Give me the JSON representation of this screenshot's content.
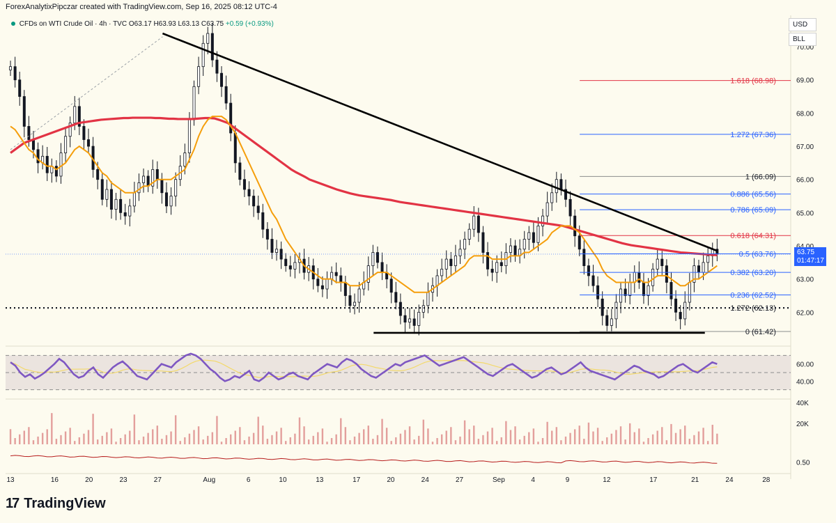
{
  "header": {
    "credit": "ForexAnalytixPipczar created with TradingView.com, Sep 16, 2025 08:12 UTC-4"
  },
  "symbol": {
    "name": "CFDs on WTI Crude Oil · 4h · TVC",
    "open": "O63.17",
    "high": "H63.93",
    "low": "L63.13",
    "close": "C63.75",
    "change": "+0.59 (+0.93%)"
  },
  "currency_buttons": [
    "USD",
    "BLL"
  ],
  "price_tag": {
    "price": "63.75",
    "countdown": "01:47:17"
  },
  "brand": {
    "name": "TradingView"
  },
  "colors": {
    "background": "#fdfbef",
    "ema_fast": "#f59e0b",
    "ema_slow": "#e23344",
    "rsi": "#7e57c2",
    "rsi_ma": "#f3d96b",
    "fib_blue": "#2962ff",
    "fib_red": "#e23344",
    "volume": "#d98080"
  },
  "chart_data": {
    "type": "candlestick",
    "price_axis": {
      "min": 61.0,
      "max": 70.4,
      "labels": [
        "70.00",
        "69.00",
        "68.00",
        "67.00",
        "66.00",
        "65.00",
        "64.00",
        "63.00",
        "62.00"
      ],
      "values": [
        70,
        69,
        68,
        67,
        66,
        65,
        64,
        63,
        62
      ]
    },
    "x_axis": {
      "labels": [
        "13",
        "16",
        "20",
        "23",
        "27",
        "Aug",
        "6",
        "10",
        "13",
        "17",
        "20",
        "24",
        "27",
        "Sep",
        "4",
        "9",
        "12",
        "17",
        "21",
        "24",
        "28"
      ],
      "bar_index": [
        0,
        18,
        32,
        46,
        60,
        81,
        97,
        111,
        126,
        141,
        155,
        169,
        183,
        199,
        213,
        227,
        243,
        262,
        279,
        293,
        308
      ]
    },
    "close_series": [
      69.4,
      69.0,
      68.5,
      67.6,
      67.2,
      66.9,
      66.5,
      66.7,
      66.2,
      66.4,
      66.1,
      66.8,
      67.3,
      67.7,
      68.2,
      67.6,
      67.2,
      67.0,
      66.3,
      66.0,
      65.4,
      65.7,
      65.1,
      65.4,
      65.0,
      64.9,
      65.2,
      65.6,
      65.9,
      66.1,
      65.8,
      66.3,
      66.0,
      65.6,
      65.2,
      65.5,
      66.0,
      66.4,
      66.8,
      67.8,
      68.8,
      69.4,
      70.1,
      70.4,
      69.6,
      69.2,
      68.8,
      68.3,
      67.4,
      66.5,
      66.0,
      65.7,
      65.5,
      65.2,
      65.0,
      64.5,
      64.2,
      63.8,
      63.9,
      63.6,
      63.4,
      63.3,
      63.5,
      63.6,
      63.2,
      63.4,
      63.0,
      62.8,
      62.7,
      63.0,
      63.2,
      63.1,
      62.9,
      62.5,
      62.2,
      62.3,
      62.7,
      62.9,
      63.4,
      63.8,
      63.5,
      63.2,
      63.0,
      62.6,
      62.3,
      61.9,
      61.7,
      61.8,
      61.6,
      62.0,
      62.2,
      62.6,
      62.8,
      63.1,
      63.3,
      63.6,
      63.4,
      63.7,
      63.9,
      64.2,
      64.5,
      64.9,
      64.4,
      63.8,
      63.3,
      63.2,
      63.5,
      63.4,
      63.8,
      64.0,
      63.7,
      63.9,
      64.2,
      64.4,
      64.1,
      64.6,
      64.9,
      65.3,
      65.6,
      66.0,
      65.7,
      65.4,
      64.9,
      64.3,
      63.9,
      63.4,
      63.1,
      62.8,
      62.4,
      61.9,
      61.6,
      61.8,
      62.3,
      62.7,
      62.5,
      62.9,
      63.2,
      62.9,
      62.5,
      62.8,
      63.3,
      63.6,
      63.4,
      62.9,
      62.4,
      62.0,
      61.8,
      62.3,
      62.9,
      63.4,
      63.2,
      63.5,
      63.7,
      63.9,
      63.75
    ],
    "ema_fast": [
      67.6,
      67.5,
      67.3,
      67.1,
      66.9,
      66.8,
      66.6,
      66.5,
      66.4,
      66.4,
      66.3,
      66.4,
      66.5,
      66.7,
      66.9,
      67.0,
      66.9,
      66.8,
      66.6,
      66.4,
      66.2,
      66.1,
      65.9,
      65.8,
      65.7,
      65.6,
      65.6,
      65.6,
      65.7,
      65.8,
      65.8,
      65.9,
      66.0,
      66.0,
      66.0,
      66.0,
      66.1,
      66.2,
      66.3,
      66.6,
      66.9,
      67.3,
      67.6,
      67.8,
      67.9,
      67.9,
      67.9,
      67.8,
      67.6,
      67.4,
      67.1,
      66.8,
      66.5,
      66.2,
      65.9,
      65.6,
      65.3,
      65.0,
      64.8,
      64.5,
      64.2,
      64.0,
      63.8,
      63.6,
      63.4,
      63.3,
      63.2,
      63.1,
      63.0,
      63.0,
      63.0,
      62.9,
      62.9,
      62.9,
      62.8,
      62.8,
      62.8,
      62.9,
      63.0,
      63.1,
      63.2,
      63.2,
      63.2,
      63.1,
      63.0,
      62.9,
      62.8,
      62.7,
      62.6,
      62.6,
      62.6,
      62.6,
      62.7,
      62.8,
      62.9,
      63.0,
      63.1,
      63.2,
      63.3,
      63.4,
      63.6,
      63.7,
      63.7,
      63.7,
      63.7,
      63.6,
      63.6,
      63.6,
      63.6,
      63.7,
      63.7,
      63.7,
      63.8,
      63.8,
      63.9,
      64.0,
      64.1,
      64.2,
      64.4,
      64.5,
      64.6,
      64.6,
      64.6,
      64.5,
      64.4,
      64.2,
      64.0,
      63.8,
      63.6,
      63.3,
      63.1,
      63.0,
      62.9,
      62.9,
      62.9,
      62.9,
      62.9,
      63.0,
      62.9,
      62.9,
      63.0,
      63.1,
      63.1,
      63.1,
      63.0,
      62.9,
      62.8,
      62.8,
      62.9,
      63.0,
      63.0,
      63.1,
      63.2,
      63.3,
      63.4
    ],
    "ema_slow": [
      66.8,
      66.9,
      67.0,
      67.1,
      67.15,
      67.2,
      67.25,
      67.3,
      67.35,
      67.4,
      67.45,
      67.5,
      67.55,
      67.6,
      67.65,
      67.7,
      67.72,
      67.74,
      67.76,
      67.78,
      67.8,
      67.81,
      67.82,
      67.83,
      67.84,
      67.85,
      67.85,
      67.86,
      67.86,
      67.86,
      67.86,
      67.86,
      67.85,
      67.85,
      67.84,
      67.83,
      67.83,
      67.82,
      67.82,
      67.82,
      67.82,
      67.83,
      67.84,
      67.85,
      67.85,
      67.84,
      67.8,
      67.75,
      67.7,
      67.6,
      67.5,
      67.4,
      67.3,
      67.2,
      67.1,
      67.0,
      66.9,
      66.8,
      66.7,
      66.6,
      66.5,
      66.4,
      66.3,
      66.22,
      66.15,
      66.08,
      66.0,
      65.95,
      65.9,
      65.85,
      65.8,
      65.75,
      65.7,
      65.66,
      65.62,
      65.58,
      65.55,
      65.52,
      65.5,
      65.48,
      65.46,
      65.44,
      65.42,
      65.4,
      65.38,
      65.35,
      65.32,
      65.3,
      65.28,
      65.26,
      65.24,
      65.22,
      65.2,
      65.18,
      65.16,
      65.14,
      65.12,
      65.1,
      65.08,
      65.06,
      65.04,
      65.02,
      65.0,
      64.98,
      64.96,
      64.94,
      64.92,
      64.9,
      64.88,
      64.86,
      64.84,
      64.82,
      64.8,
      64.78,
      64.76,
      64.74,
      64.72,
      64.7,
      64.68,
      64.66,
      64.64,
      64.62,
      64.6,
      64.56,
      64.52,
      64.48,
      64.44,
      64.4,
      64.36,
      64.32,
      64.28,
      64.24,
      64.2,
      64.16,
      64.12,
      64.08,
      64.05,
      64.02,
      64.0,
      63.98,
      63.96,
      63.94,
      63.92,
      63.9,
      63.88,
      63.86,
      63.84,
      63.82,
      63.8,
      63.79,
      63.78,
      63.77,
      63.76,
      63.75,
      63.74,
      63.73,
      63.72
    ],
    "fibonacci": [
      {
        "label": "1.618 (68.98)",
        "price": 68.98,
        "color": "red"
      },
      {
        "label": "1.272 (67.36)",
        "price": 67.36,
        "color": "blue"
      },
      {
        "label": "1 (66.09)",
        "price": 66.09,
        "color": "gray"
      },
      {
        "label": "0.886 (65.56)",
        "price": 65.56,
        "color": "blue"
      },
      {
        "label": "0.786 (65.09)",
        "price": 65.09,
        "color": "blue"
      },
      {
        "label": "0.618 (64.31)",
        "price": 64.31,
        "color": "red"
      },
      {
        "label": "0.5 (63.76)",
        "price": 63.76,
        "color": "blue"
      },
      {
        "label": "0.382 (63.20)",
        "price": 63.2,
        "color": "blue"
      },
      {
        "label": "0.236 (62.52)",
        "price": 62.52,
        "color": "blue"
      },
      {
        "label": "0 (61.42)",
        "price": 61.42,
        "color": "gray"
      }
    ],
    "horizontal_level": {
      "label": "1.272 (62.13)",
      "price": 62.13
    },
    "trendlines": [
      {
        "name": "descending resistance",
        "from": [
          62,
          70.4
        ],
        "to": [
          288,
          63.85
        ]
      },
      {
        "name": "support",
        "from": [
          148,
          61.38
        ],
        "to": [
          283,
          61.38
        ]
      }
    ],
    "rsi_pane": {
      "labels": [
        "60.00",
        "40.00"
      ],
      "values": [
        60,
        40
      ],
      "band": [
        30,
        70
      ],
      "min": 20,
      "max": 80
    },
    "rsi_series": [
      62,
      58,
      50,
      45,
      48,
      43,
      46,
      50,
      55,
      60,
      66,
      62,
      55,
      48,
      44,
      46,
      52,
      56,
      48,
      44,
      50,
      56,
      60,
      63,
      58,
      52,
      46,
      44,
      42,
      48,
      54,
      60,
      58,
      56,
      62,
      66,
      70,
      72,
      70,
      66,
      60,
      54,
      50,
      44,
      40,
      42,
      46,
      44,
      48,
      52,
      42,
      40,
      44,
      50,
      46,
      42,
      44,
      48,
      50,
      46,
      44,
      42,
      48,
      52,
      56,
      60,
      58,
      56,
      62,
      66,
      64,
      60,
      54,
      50,
      46,
      44,
      48,
      52,
      56,
      60,
      58,
      62,
      64,
      66,
      68,
      70,
      66,
      62,
      58,
      60,
      62,
      64,
      66,
      68,
      64,
      60,
      56,
      52,
      48,
      46,
      50,
      54,
      58,
      60,
      56,
      52,
      48,
      44,
      46,
      50,
      54,
      56,
      52,
      48,
      50,
      54,
      58,
      62,
      56,
      52,
      50,
      48,
      46,
      44,
      42,
      46,
      50,
      54,
      58,
      56,
      52,
      50,
      48,
      44,
      46,
      50,
      54,
      58,
      60,
      56,
      52,
      50,
      54,
      58,
      62,
      60
    ],
    "volume_pane": {
      "labels": [
        "40K",
        "20K"
      ],
      "values": [
        40000,
        20000
      ]
    },
    "indicator2_pane": {
      "labels": [
        "0.50"
      ],
      "values": [
        0.5
      ]
    }
  }
}
